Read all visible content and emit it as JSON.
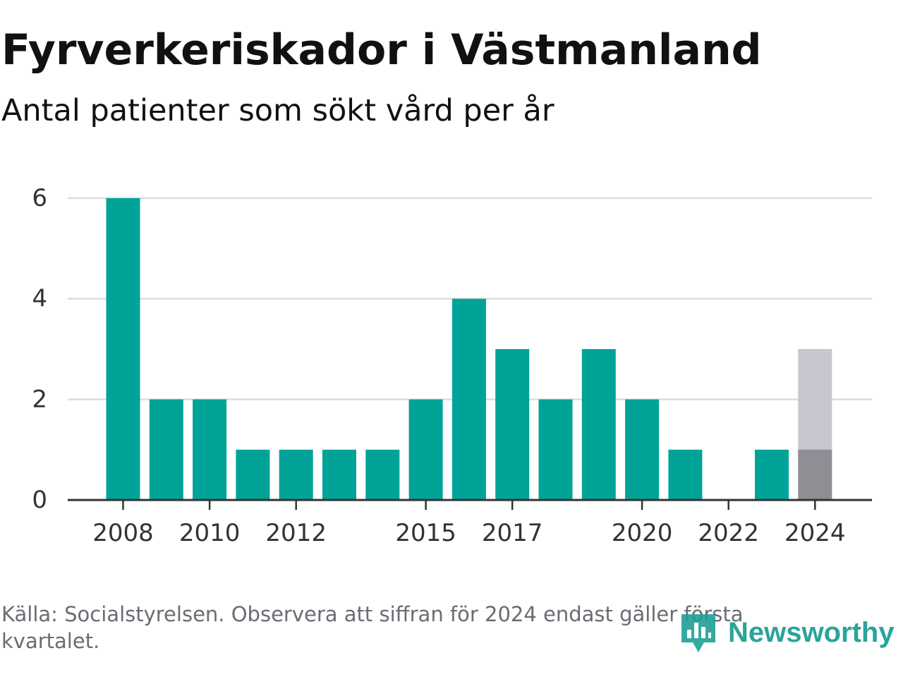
{
  "title": "Fyrverkeriskador i Västmanland",
  "subtitle": "Antal patienter som sökt vård per år",
  "footnote": "Källa: Socialstyrelsen. Observera att siffran för 2024 endast gäller första kvartalet.",
  "logo": {
    "text": "Newsworthy",
    "icon": "newsworthy-logo-icon"
  },
  "colors": {
    "bar": "#00a398",
    "partial_bar": "#8e8e95",
    "estimate_bar": "#c7c6d1",
    "grid": "#dcdcdc",
    "axis": "#333333",
    "text": "#333333"
  },
  "chart_data": {
    "type": "bar",
    "title": "Fyrverkeriskador i Västmanland",
    "subtitle": "Antal patienter som sökt vård per år",
    "x": [
      2008,
      2009,
      2010,
      2011,
      2012,
      2013,
      2014,
      2015,
      2016,
      2017,
      2018,
      2019,
      2020,
      2021,
      2022,
      2023,
      2024
    ],
    "values": [
      6,
      2,
      2,
      1,
      1,
      1,
      1,
      2,
      4,
      3,
      2,
      3,
      2,
      1,
      0,
      1,
      1
    ],
    "extrapolated": {
      "x": 2024,
      "value": 3
    },
    "xticks": [
      2008,
      2010,
      2012,
      2015,
      2017,
      2020,
      2022,
      2024
    ],
    "yticks": [
      0,
      2,
      4,
      6
    ],
    "ylim": [
      0,
      6
    ],
    "grid": true,
    "legend": "none"
  }
}
